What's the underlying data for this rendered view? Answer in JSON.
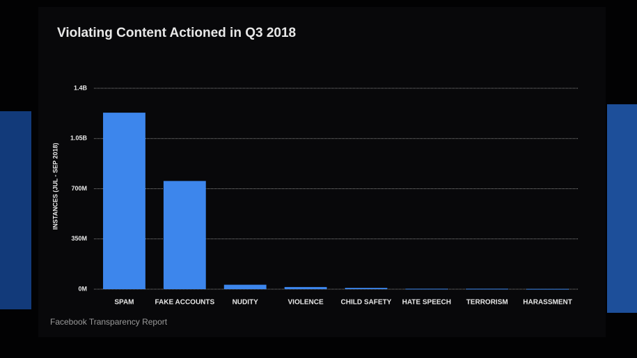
{
  "chart_data": {
    "type": "bar",
    "title": "Violating Content Actioned in Q3 2018",
    "y_label": "INSTANCES (JUL - SEP 2018)",
    "footer": "Facebook Transparency Report",
    "categories": [
      "SPAM",
      "FAKE ACCOUNTS",
      "NUDITY",
      "VIOLENCE",
      "CHILD SAFETY",
      "HATE SPEECH",
      "TERRORISM",
      "HARASSMENT"
    ],
    "values": [
      1230,
      754,
      31,
      15,
      9,
      3,
      3,
      2
    ],
    "color": "#3d86ec",
    "ylim": [
      0,
      1400
    ],
    "yticks": [
      {
        "value": 0,
        "label": "0M"
      },
      {
        "value": 350,
        "label": "350M"
      },
      {
        "value": 700,
        "label": "700M"
      },
      {
        "value": 1050,
        "label": "1.05B"
      },
      {
        "value": 1400,
        "label": "1.4B"
      }
    ],
    "grid": true
  }
}
